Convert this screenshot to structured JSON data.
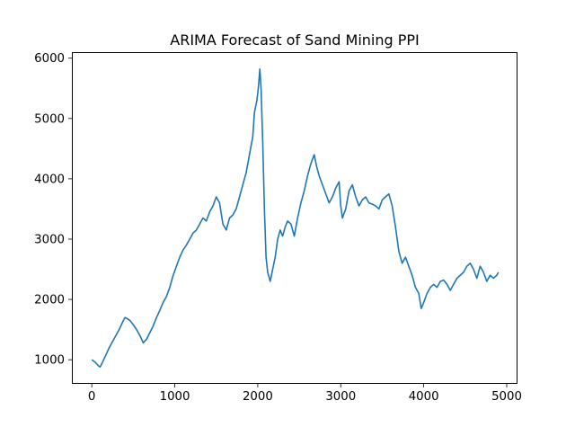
{
  "chart_data": {
    "type": "line",
    "title": "ARIMA Forecast of Sand Mining PPI",
    "xlabel": "",
    "ylabel": "",
    "xlim": [
      -240,
      5130
    ],
    "ylim": [
      600,
      6100
    ],
    "xticks": [
      0,
      1000,
      2000,
      3000,
      4000,
      5000
    ],
    "yticks": [
      1000,
      2000,
      3000,
      4000,
      5000,
      6000
    ],
    "xtick_labels": [
      "0",
      "1000",
      "2000",
      "3000",
      "4000",
      "5000"
    ],
    "ytick_labels": [
      "1000",
      "2000",
      "3000",
      "4000",
      "5000",
      "6000"
    ],
    "grid": false,
    "legend": "none",
    "series": [
      {
        "color": "#1f77b4",
        "x": [
          0,
          40,
          80,
          100,
          130,
          170,
          210,
          250,
          290,
          330,
          370,
          400,
          430,
          460,
          500,
          540,
          580,
          620,
          660,
          700,
          740,
          780,
          820,
          860,
          900,
          940,
          980,
          1020,
          1060,
          1100,
          1140,
          1180,
          1220,
          1260,
          1300,
          1340,
          1380,
          1420,
          1460,
          1500,
          1540,
          1580,
          1620,
          1660,
          1700,
          1740,
          1780,
          1820,
          1860,
          1900,
          1940,
          1960,
          1990,
          2010,
          2025,
          2040,
          2060,
          2080,
          2100,
          2120,
          2150,
          2180,
          2210,
          2240,
          2270,
          2300,
          2330,
          2360,
          2400,
          2440,
          2480,
          2520,
          2560,
          2600,
          2640,
          2680,
          2710,
          2740,
          2780,
          2820,
          2860,
          2900,
          2940,
          2980,
          3000,
          3020,
          3060,
          3100,
          3140,
          3180,
          3220,
          3260,
          3300,
          3340,
          3380,
          3420,
          3460,
          3500,
          3540,
          3580,
          3620,
          3660,
          3700,
          3740,
          3780,
          3820,
          3860,
          3900,
          3940,
          3970,
          4000,
          4040,
          4080,
          4120,
          4160,
          4200,
          4240,
          4280,
          4320,
          4360,
          4400,
          4440,
          4480,
          4520,
          4560,
          4600,
          4640,
          4680,
          4720,
          4760,
          4800,
          4840,
          4880,
          4900
        ],
        "y": [
          1000,
          960,
          900,
          880,
          960,
          1080,
          1200,
          1300,
          1400,
          1500,
          1620,
          1700,
          1680,
          1650,
          1580,
          1500,
          1400,
          1280,
          1340,
          1450,
          1560,
          1700,
          1820,
          1950,
          2050,
          2200,
          2400,
          2550,
          2700,
          2820,
          2900,
          3000,
          3100,
          3150,
          3250,
          3350,
          3300,
          3450,
          3550,
          3700,
          3600,
          3250,
          3150,
          3350,
          3400,
          3500,
          3700,
          3900,
          4100,
          4400,
          4700,
          5100,
          5300,
          5550,
          5820,
          5500,
          4600,
          3500,
          2700,
          2450,
          2300,
          2500,
          2700,
          3000,
          3150,
          3050,
          3200,
          3300,
          3250,
          3050,
          3350,
          3600,
          3800,
          4050,
          4250,
          4400,
          4200,
          4050,
          3900,
          3750,
          3600,
          3700,
          3850,
          3950,
          3550,
          3350,
          3500,
          3800,
          3900,
          3700,
          3550,
          3650,
          3700,
          3600,
          3580,
          3550,
          3500,
          3650,
          3700,
          3750,
          3550,
          3200,
          2800,
          2600,
          2700,
          2550,
          2400,
          2200,
          2100,
          1850,
          1950,
          2100,
          2200,
          2250,
          2200,
          2300,
          2320,
          2250,
          2150,
          2250,
          2350,
          2400,
          2450,
          2550,
          2600,
          2500,
          2350,
          2550,
          2450,
          2300,
          2400,
          2350,
          2400,
          2450
        ]
      }
    ]
  }
}
